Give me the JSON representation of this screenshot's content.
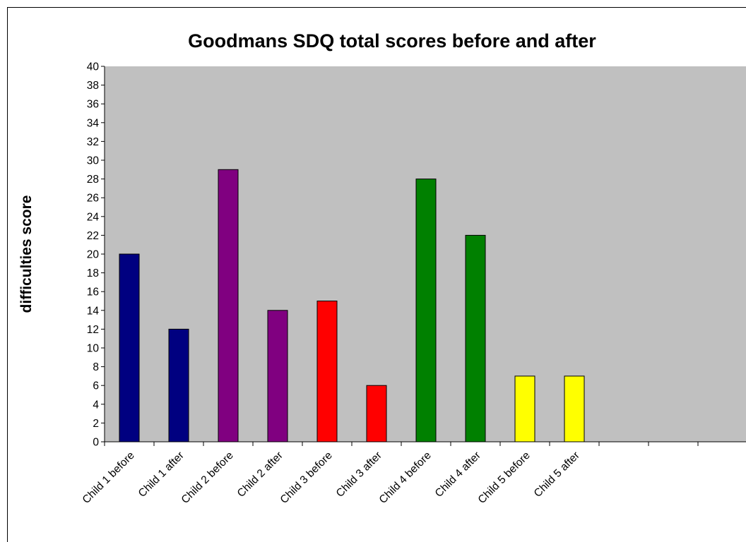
{
  "chart_data": {
    "type": "bar",
    "title": "Goodmans SDQ total scores before and after",
    "xlabel": "",
    "ylabel": "difficulties score",
    "ylim": [
      0,
      40
    ],
    "yticks": [
      0,
      2,
      4,
      6,
      8,
      10,
      12,
      14,
      16,
      18,
      20,
      22,
      24,
      26,
      28,
      30,
      32,
      34,
      36,
      38,
      40
    ],
    "grid": false,
    "legend": "none",
    "plot_background": "#c0c0c0",
    "categories": [
      "Child 1 before",
      "Child 1 after",
      "Child 2 before",
      "Child 2 after",
      "Child 3 before",
      "Child 3 after",
      "Child 4 before",
      "Child 4 after",
      "Child 5 before",
      "Child 5 after",
      "",
      "",
      ""
    ],
    "values": [
      20,
      12,
      29,
      14,
      15,
      6,
      28,
      22,
      7,
      7,
      null,
      null,
      null
    ],
    "colors": [
      "#000080",
      "#000080",
      "#800080",
      "#800080",
      "#ff0000",
      "#ff0000",
      "#008000",
      "#008000",
      "#ffff00",
      "#ffff00",
      null,
      null,
      null
    ]
  }
}
